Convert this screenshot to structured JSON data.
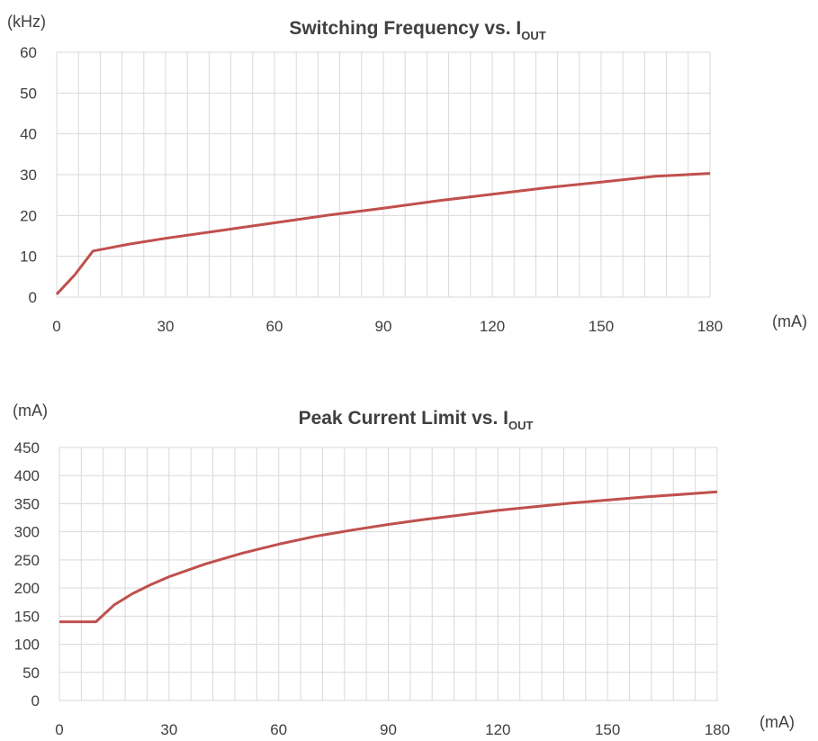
{
  "chart_data": [
    {
      "type": "line",
      "title": "Switching Frequency  vs. I",
      "title_subscript": "OUT",
      "y_unit": "(kHz)",
      "x_unit": "(mA)",
      "xlim": [
        0,
        180
      ],
      "ylim": [
        0,
        60
      ],
      "x_ticks": [
        0,
        30,
        60,
        90,
        120,
        150,
        180
      ],
      "y_ticks": [
        0,
        10,
        20,
        30,
        40,
        50,
        60
      ],
      "x_minor_step": 6,
      "y_minor_step": 10,
      "grid": true,
      "line_color": "#C0504D",
      "series": [
        {
          "x": [
            0,
            5,
            10,
            20,
            30,
            45,
            60,
            75,
            90,
            105,
            120,
            135,
            150,
            165,
            180
          ],
          "y": [
            0.7,
            5.5,
            11.3,
            13.0,
            14.4,
            16.3,
            18.2,
            20.1,
            21.8,
            23.6,
            25.2,
            26.8,
            28.2,
            29.6,
            30.3
          ]
        }
      ]
    },
    {
      "type": "line",
      "title": "Peak Current Limit  vs. I",
      "title_subscript": "OUT",
      "y_unit": "(mA)",
      "x_unit": "(mA)",
      "xlim": [
        0,
        180
      ],
      "ylim": [
        0,
        450
      ],
      "x_ticks": [
        0,
        30,
        60,
        90,
        120,
        150,
        180
      ],
      "y_ticks": [
        0,
        50,
        100,
        150,
        200,
        250,
        300,
        350,
        400,
        450
      ],
      "x_minor_step": 6,
      "y_minor_step": 50,
      "grid": true,
      "line_color": "#C0504D",
      "series": [
        {
          "x": [
            0,
            10,
            15,
            20,
            25,
            30,
            40,
            50,
            60,
            70,
            80,
            90,
            100,
            120,
            140,
            160,
            180
          ],
          "y": [
            140,
            140,
            170,
            190,
            206,
            220,
            243,
            262,
            278,
            292,
            303,
            313,
            322,
            338,
            351,
            362,
            371
          ]
        }
      ]
    }
  ]
}
